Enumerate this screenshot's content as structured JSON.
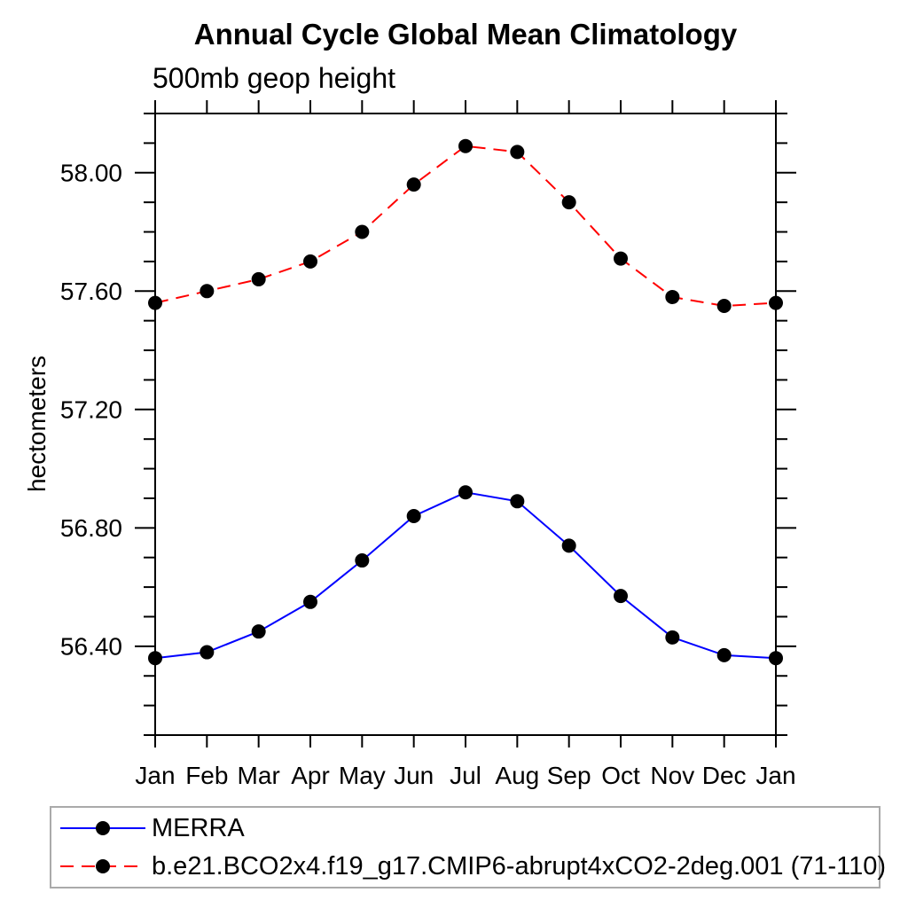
{
  "title": "Annual Cycle Global Mean Climatology",
  "subtitle": "500mb geop height",
  "colors": {
    "merra_line": "#0000ff",
    "model_line": "#ff0000",
    "marker": "#000000",
    "axis": "#000000",
    "legend_border": "#aaaaaa"
  },
  "chart_data": {
    "type": "line",
    "title": "Annual Cycle Global Mean Climatology",
    "subtitle": "500mb geop height",
    "ylabel": "hectometers",
    "xlabel": "",
    "x_categories": [
      "Jan",
      "Feb",
      "Mar",
      "Apr",
      "May",
      "Jun",
      "Jul",
      "Aug",
      "Sep",
      "Oct",
      "Nov",
      "Dec",
      "Jan"
    ],
    "ylim": [
      56.1,
      58.2
    ],
    "y_major_ticks": [
      56.4,
      56.8,
      57.2,
      57.6,
      58.0
    ],
    "y_minor_step": 0.1,
    "grid": false,
    "legend_position": "bottom-left",
    "series": [
      {
        "name": "MERRA",
        "color": "#0000ff",
        "line_style": "solid",
        "marker": "filled-circle",
        "values": [
          56.36,
          56.38,
          56.45,
          56.55,
          56.69,
          56.84,
          56.92,
          56.89,
          56.74,
          56.57,
          56.43,
          56.37,
          56.36
        ]
      },
      {
        "name": "b.e21.BCO2x4.f19_g17.CMIP6-abrupt4xCO2-2deg.001 (71-110)",
        "color": "#ff0000",
        "line_style": "dashed",
        "marker": "filled-circle",
        "values": [
          57.56,
          57.6,
          57.64,
          57.7,
          57.8,
          57.96,
          58.09,
          58.07,
          57.9,
          57.71,
          57.58,
          57.55,
          57.56
        ]
      }
    ]
  }
}
